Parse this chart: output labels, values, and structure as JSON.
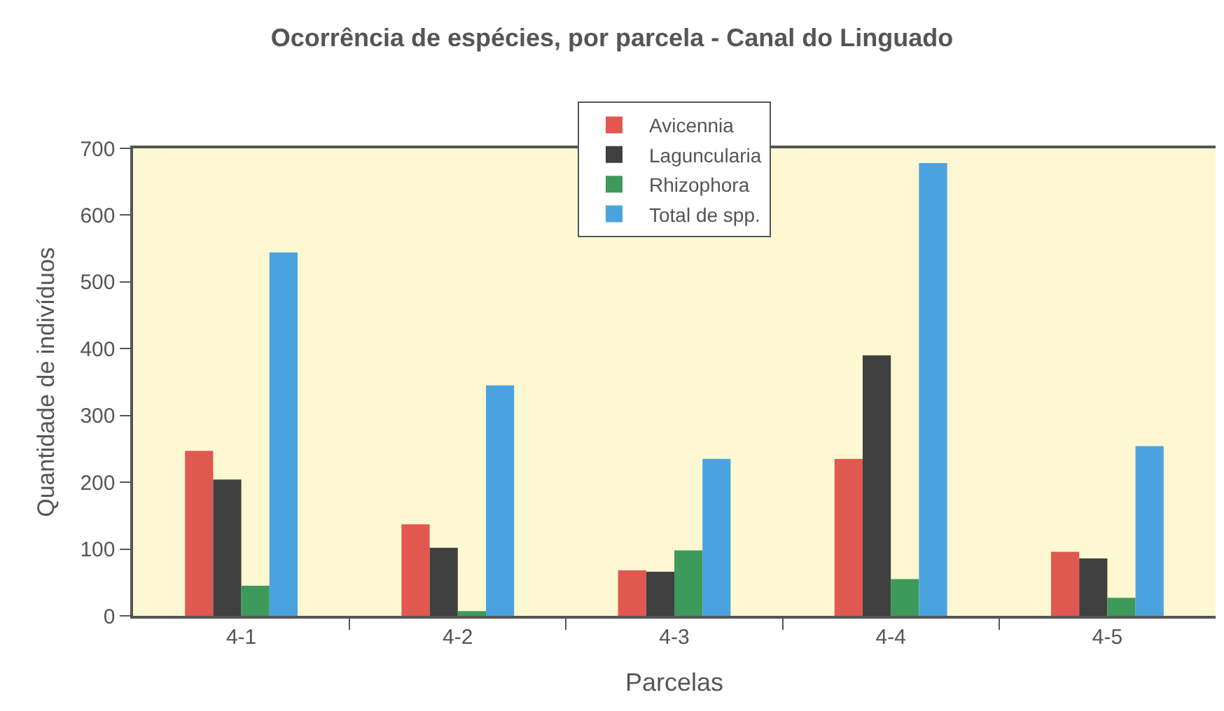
{
  "chart_data": {
    "type": "bar",
    "title": "Ocorrência de espécies, por parcela - Canal do Linguado",
    "xlabel": "Parcelas",
    "ylabel": "Quantidade de indivíduos",
    "categories": [
      "4-1",
      "4-2",
      "4-3",
      "4-4",
      "4-5"
    ],
    "series": [
      {
        "name": "Avicennia",
        "color": "#e0584f",
        "values": [
          247,
          137,
          68,
          235,
          96
        ]
      },
      {
        "name": "Laguncularia",
        "color": "#404040",
        "values": [
          204,
          102,
          66,
          390,
          86
        ]
      },
      {
        "name": "Rhizophora",
        "color": "#3d9a5a",
        "values": [
          45,
          7,
          98,
          55,
          27
        ]
      },
      {
        "name": "Total de spp.",
        "color": "#4aa3df",
        "values": [
          544,
          345,
          235,
          678,
          254
        ]
      }
    ],
    "ylim": [
      0,
      700
    ],
    "yticks": [
      0,
      100,
      200,
      300,
      400,
      500,
      600,
      700
    ],
    "grid": false,
    "legend": "top"
  }
}
